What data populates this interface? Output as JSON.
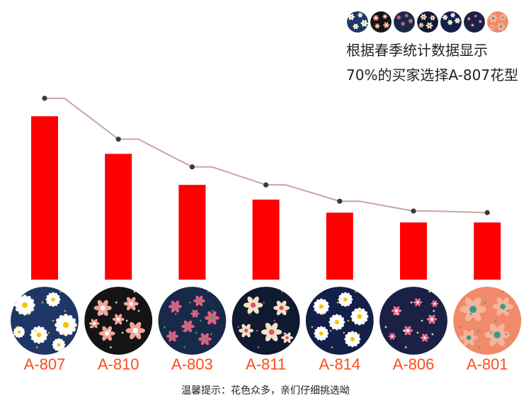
{
  "headline": {
    "line1": "根据春季统计数据显示",
    "line2": "70%的买家选择A-807花型"
  },
  "footer_note": "温馨提示：花色众多，亲们仔细挑选呦",
  "colors": {
    "bar": "#ff0000",
    "trend_line": "#c9a5a1",
    "trend_point": "#3a3a3a",
    "tick_label": "#ff4c1a"
  },
  "pattern_swatches": [
    {
      "code": "A-807",
      "ground": "#1f3766",
      "flower": "#ffffff",
      "center": "#f2c500",
      "icon": "white-daisy-icon"
    },
    {
      "code": "A-810",
      "ground": "#141414",
      "flower": "#f4a59a",
      "center": "#ffffff",
      "icon": "pink-rose-icon"
    },
    {
      "code": "A-803",
      "ground": "#182a4a",
      "flower": "#e85a8a",
      "center": "#5aa05a",
      "icon": "pink-rosebud-icon"
    },
    {
      "code": "A-811",
      "ground": "#101a30",
      "flower": "#f2e3c8",
      "center": "#e0536f",
      "icon": "cream-blossom-icon"
    },
    {
      "code": "A-814",
      "ground": "#12204a",
      "flower": "#ffffff",
      "center": "#f2c500",
      "icon": "white-daisy-icon"
    },
    {
      "code": "A-806",
      "ground": "#1a2144",
      "flower": "#f07090",
      "center": "#ffffff",
      "icon": "small-pink-flower-icon"
    },
    {
      "code": "A-801",
      "ground": "#f08a6a",
      "flower": "#f6b49a",
      "center": "#3a9a8a",
      "icon": "coral-flower-icon"
    }
  ],
  "chart_data": {
    "type": "bar",
    "categories": [
      "A-807",
      "A-810",
      "A-803",
      "A-811",
      "A-814",
      "A-806",
      "A-801"
    ],
    "values": [
      100,
      77,
      58,
      49,
      41,
      35,
      35
    ],
    "trend_values": [
      111,
      86,
      69,
      58,
      48,
      42,
      41
    ],
    "ylim": [
      0,
      130
    ],
    "grid": false,
    "legend": "none"
  }
}
